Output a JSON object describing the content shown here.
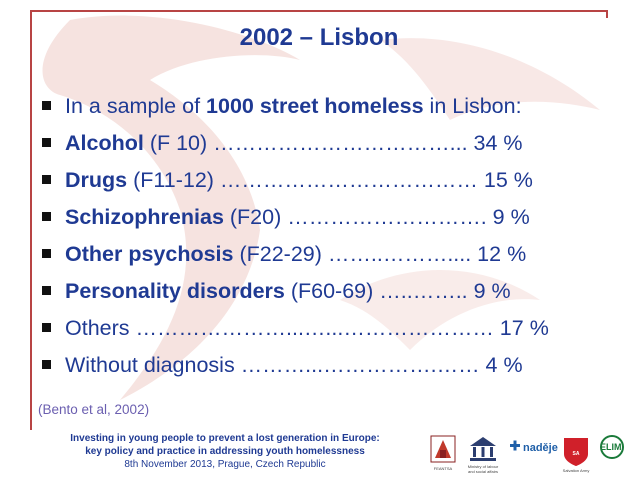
{
  "slide": {
    "title": "2002 – Lisbon",
    "bullets": [
      {
        "pre": "In a sample of ",
        "bold": "1000 street homeless",
        "post": " in Lisbon:"
      },
      {
        "pre": "",
        "bold": "Alcohol",
        "post": " (F 10) ……………………………... 34 %"
      },
      {
        "pre": "",
        "bold": "Drugs",
        "post": " (F11-12) ……………………………… 15 %"
      },
      {
        "pre": "",
        "bold": "Schizophrenias",
        "post": " (F20) ……………………….  9 %"
      },
      {
        "pre": "",
        "bold": "Other psychosis",
        "post": " (F22-29) ……..……….... 12 %"
      },
      {
        "pre": "",
        "bold": "Personality disorders",
        "post": " (F60-69) …..……..   9 %"
      },
      {
        "pre": "Others …………………...…...………………… 17 %",
        "bold": "",
        "post": ""
      },
      {
        "pre": "Without diagnosis ………...…………….……   4 %",
        "bold": "",
        "post": ""
      }
    ],
    "citation": "(Bento et al, 2002)"
  },
  "footer": {
    "line1": "Investing in young people to prevent a lost generation in Europe:",
    "line2": "key policy and practice in addressing youth homelessness",
    "line3": "8th November 2013, Prague, Czech Republic"
  },
  "logos": {
    "feantsa": "FEANTSA",
    "ministry": "Ministry of labour and social affairs",
    "nadeje": "nadějе",
    "salvation": "Salvation Army",
    "elim": "ELIM"
  },
  "colors": {
    "title": "#1f3a93",
    "text": "#1f3a93",
    "accent": "#b84444",
    "citation": "#6b5fb0"
  }
}
